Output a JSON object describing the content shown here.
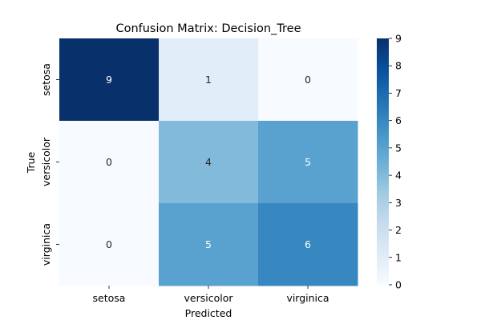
{
  "chart_data": {
    "type": "heatmap",
    "title": "Confusion Matrix: Decision_Tree",
    "xlabel": "Predicted",
    "ylabel": "True",
    "x_categories": [
      "setosa",
      "versicolor",
      "virginica"
    ],
    "y_categories": [
      "setosa",
      "versicolor",
      "virginica"
    ],
    "values": [
      [
        9,
        1,
        0
      ],
      [
        0,
        4,
        5
      ],
      [
        0,
        5,
        6
      ]
    ],
    "colormap": "Blues",
    "colorbar": {
      "range": [
        0,
        9
      ],
      "ticks": [
        "0",
        "1",
        "2",
        "3",
        "4",
        "5",
        "6",
        "7",
        "8",
        "9"
      ]
    },
    "colors": {
      "low": "#f7fbff",
      "high": "#08306b",
      "light_text": "#ffffff",
      "dark_text": "#262626"
    }
  }
}
